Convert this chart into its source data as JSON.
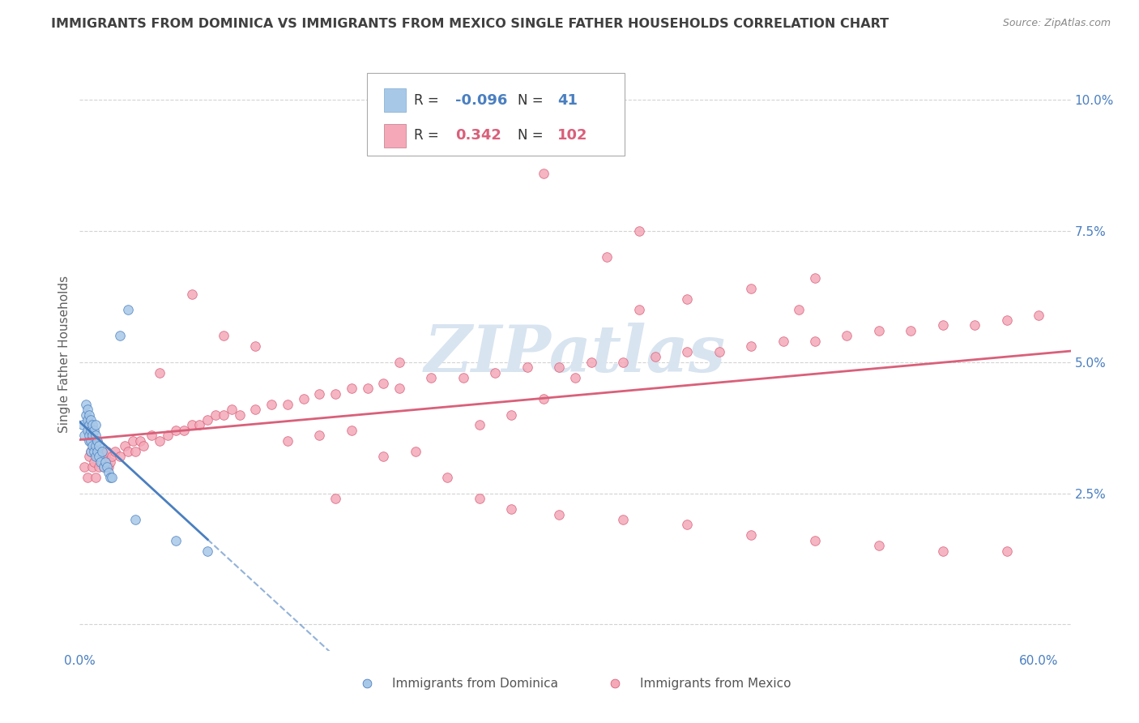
{
  "title": "IMMIGRANTS FROM DOMINICA VS IMMIGRANTS FROM MEXICO SINGLE FATHER HOUSEHOLDS CORRELATION CHART",
  "source": "Source: ZipAtlas.com",
  "ylabel": "Single Father Households",
  "legend_label1": "Immigrants from Dominica",
  "legend_label2": "Immigrants from Mexico",
  "R1": -0.096,
  "N1": 41,
  "R2": 0.342,
  "N2": 102,
  "color_blue": "#a8c8e8",
  "color_pink": "#f4a8b8",
  "color_blue_line": "#4a7fc0",
  "color_pink_line": "#d9607a",
  "xlim": [
    0.0,
    0.62
  ],
  "ylim": [
    -0.005,
    0.108
  ],
  "yticks": [
    0.0,
    0.025,
    0.05,
    0.075,
    0.1
  ],
  "ytick_labels": [
    "",
    "2.5%",
    "5.0%",
    "7.5%",
    "10.0%"
  ],
  "background_color": "#ffffff",
  "grid_color": "#c8c8c8",
  "title_color": "#404040",
  "title_fontsize": 11.5,
  "axis_label_color": "#606060",
  "watermark": "ZIPatlas",
  "watermark_color": "#d8e4f0",
  "blue_x": [
    0.002,
    0.003,
    0.004,
    0.004,
    0.005,
    0.005,
    0.005,
    0.006,
    0.006,
    0.006,
    0.006,
    0.007,
    0.007,
    0.007,
    0.007,
    0.008,
    0.008,
    0.008,
    0.009,
    0.009,
    0.01,
    0.01,
    0.01,
    0.01,
    0.011,
    0.011,
    0.012,
    0.012,
    0.013,
    0.014,
    0.015,
    0.016,
    0.017,
    0.018,
    0.019,
    0.02,
    0.025,
    0.03,
    0.035,
    0.06,
    0.08
  ],
  "blue_y": [
    0.038,
    0.036,
    0.042,
    0.04,
    0.037,
    0.039,
    0.041,
    0.035,
    0.036,
    0.038,
    0.04,
    0.033,
    0.035,
    0.037,
    0.039,
    0.034,
    0.036,
    0.038,
    0.033,
    0.037,
    0.032,
    0.034,
    0.036,
    0.038,
    0.033,
    0.035,
    0.032,
    0.034,
    0.031,
    0.033,
    0.03,
    0.031,
    0.03,
    0.029,
    0.028,
    0.028,
    0.055,
    0.06,
    0.02,
    0.016,
    0.014
  ],
  "pink_x": [
    0.003,
    0.005,
    0.006,
    0.007,
    0.008,
    0.008,
    0.009,
    0.01,
    0.011,
    0.012,
    0.013,
    0.014,
    0.015,
    0.016,
    0.017,
    0.018,
    0.019,
    0.02,
    0.022,
    0.025,
    0.028,
    0.03,
    0.033,
    0.035,
    0.038,
    0.04,
    0.045,
    0.05,
    0.055,
    0.06,
    0.065,
    0.07,
    0.075,
    0.08,
    0.085,
    0.09,
    0.095,
    0.1,
    0.11,
    0.12,
    0.13,
    0.14,
    0.15,
    0.16,
    0.17,
    0.18,
    0.19,
    0.2,
    0.22,
    0.24,
    0.26,
    0.28,
    0.3,
    0.32,
    0.34,
    0.36,
    0.38,
    0.4,
    0.42,
    0.44,
    0.46,
    0.48,
    0.5,
    0.52,
    0.54,
    0.56,
    0.58,
    0.6,
    0.35,
    0.38,
    0.42,
    0.46,
    0.25,
    0.27,
    0.29,
    0.31,
    0.05,
    0.07,
    0.09,
    0.11,
    0.13,
    0.15,
    0.17,
    0.19,
    0.21,
    0.23,
    0.25,
    0.27,
    0.3,
    0.34,
    0.38,
    0.42,
    0.46,
    0.5,
    0.54,
    0.58,
    0.35,
    0.29,
    0.33,
    0.45,
    0.2,
    0.16
  ],
  "pink_y": [
    0.03,
    0.028,
    0.032,
    0.033,
    0.03,
    0.035,
    0.031,
    0.028,
    0.032,
    0.03,
    0.033,
    0.031,
    0.03,
    0.032,
    0.033,
    0.03,
    0.031,
    0.032,
    0.033,
    0.032,
    0.034,
    0.033,
    0.035,
    0.033,
    0.035,
    0.034,
    0.036,
    0.035,
    0.036,
    0.037,
    0.037,
    0.038,
    0.038,
    0.039,
    0.04,
    0.04,
    0.041,
    0.04,
    0.041,
    0.042,
    0.042,
    0.043,
    0.044,
    0.044,
    0.045,
    0.045,
    0.046,
    0.045,
    0.047,
    0.047,
    0.048,
    0.049,
    0.049,
    0.05,
    0.05,
    0.051,
    0.052,
    0.052,
    0.053,
    0.054,
    0.054,
    0.055,
    0.056,
    0.056,
    0.057,
    0.057,
    0.058,
    0.059,
    0.06,
    0.062,
    0.064,
    0.066,
    0.038,
    0.04,
    0.043,
    0.047,
    0.048,
    0.063,
    0.055,
    0.053,
    0.035,
    0.036,
    0.037,
    0.032,
    0.033,
    0.028,
    0.024,
    0.022,
    0.021,
    0.02,
    0.019,
    0.017,
    0.016,
    0.015,
    0.014,
    0.014,
    0.075,
    0.086,
    0.07,
    0.06,
    0.05,
    0.024
  ]
}
